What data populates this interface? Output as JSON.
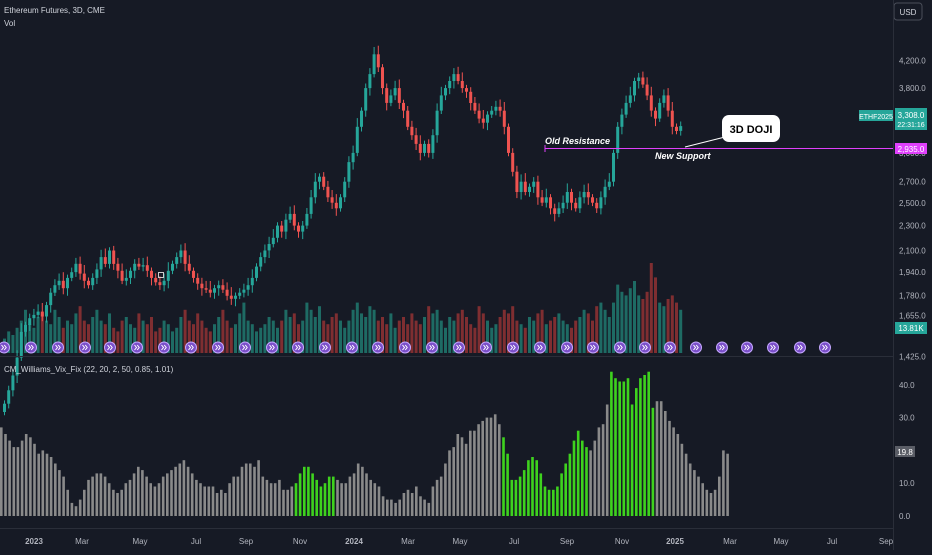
{
  "header": {
    "symbol_line": "Ethereum Futures, 3D, CME",
    "volume_label": "Vol"
  },
  "currency_button": "USD",
  "price_axis": {
    "ticks": [
      4200,
      3800,
      3400,
      3000,
      2700,
      2500,
      2300,
      2100,
      1940,
      1780,
      1655,
      1425
    ],
    "tick_labels": [
      "4,200.0",
      "3,800.0",
      "3,400.0",
      "3,000.0",
      "2,700.0",
      "2,500.0",
      "2,300.0",
      "2,100.0",
      "1,940.0",
      "1,780.0",
      "1,655.0",
      "1,425.0"
    ],
    "ticker_badge": "ETHF2025",
    "last_price": "3,308.0",
    "countdown": "22:31:16",
    "support_price": "2,935.0",
    "volume_badge": "13.81K"
  },
  "annotations": {
    "old_resistance": "Old Resistance",
    "new_support": "New Support",
    "callout": "3D DOJI"
  },
  "indicator": {
    "label": "CM_Williams_Vix_Fix (22, 20, 2, 50, 0.85, 1.01)",
    "ticks": [
      40,
      30,
      20,
      10,
      0
    ],
    "tick_labels": [
      "40.0",
      "30.0",
      "20.0",
      "10.0",
      "0.0"
    ],
    "last_value": "19.8"
  },
  "time_axis": {
    "labels": [
      "2023",
      "Mar",
      "May",
      "Jul",
      "Sep",
      "Nov",
      "2024",
      "Mar",
      "May",
      "Jul",
      "Sep",
      "Nov",
      "2025",
      "Mar",
      "May",
      "Jul",
      "Sep"
    ]
  },
  "colors": {
    "background": "#161a25",
    "up": "#26a69a",
    "down": "#ef5350",
    "volume_up": "#1e6b64",
    "volume_down": "#7f2e31",
    "support_line": "#e040fb",
    "vix_normal": "#8a8a8a",
    "vix_alert": "#3ed21e",
    "event_icon": "#7b4fc9"
  },
  "chart_data": [
    {
      "type": "candlestick",
      "title": "Ethereum Futures, 3D, CME",
      "x_start": "2023-01",
      "x_end": "2025-09",
      "ylim": [
        1360,
        4480
      ],
      "y_scale": "log",
      "support_level": 2935,
      "last": 3308,
      "approx_closes": [
        1200,
        1260,
        1330,
        1420,
        1560,
        1600,
        1640,
        1660,
        1680,
        1650,
        1720,
        1800,
        1850,
        1880,
        1830,
        1900,
        1940,
        2000,
        1930,
        1880,
        1850,
        1900,
        1960,
        2050,
        2000,
        2100,
        2000,
        1950,
        1880,
        1900,
        1950,
        2000,
        1980,
        1990,
        1950,
        1900,
        1870,
        1850,
        1880,
        1950,
        2000,
        2050,
        2100,
        2000,
        1950,
        1900,
        1860,
        1830,
        1820,
        1800,
        1830,
        1850,
        1820,
        1780,
        1760,
        1780,
        1800,
        1820,
        1850,
        1900,
        1980,
        2050,
        2100,
        2150,
        2200,
        2300,
        2250,
        2350,
        2400,
        2300,
        2250,
        2300,
        2400,
        2550,
        2700,
        2750,
        2650,
        2550,
        2500,
        2450,
        2550,
        2700,
        2900,
        3000,
        3300,
        3500,
        3800,
        4000,
        4300,
        4100,
        3800,
        3600,
        3700,
        3800,
        3600,
        3500,
        3300,
        3200,
        3100,
        3000,
        3100,
        3000,
        3200,
        3500,
        3700,
        3800,
        3900,
        4000,
        3900,
        3800,
        3750,
        3600,
        3500,
        3400,
        3350,
        3450,
        3500,
        3550,
        3500,
        3300,
        3000,
        2800,
        2600,
        2700,
        2600,
        2650,
        2700,
        2550,
        2500,
        2550,
        2450,
        2400,
        2450,
        2500,
        2600,
        2500,
        2450,
        2550,
        2600,
        2550,
        2500,
        2450,
        2550,
        2650,
        2700,
        3000,
        3300,
        3450,
        3600,
        3700,
        3900,
        3950,
        3850,
        3700,
        3500,
        3400,
        3600,
        3700,
        3500,
        3300,
        3250,
        3308
      ],
      "approx_volumes": [
        4,
        6,
        5,
        7,
        9,
        12,
        8,
        7,
        10,
        11,
        9,
        8,
        12,
        10,
        7,
        9,
        8,
        11,
        13,
        9,
        8,
        10,
        12,
        9,
        8,
        11,
        7,
        6,
        9,
        10,
        8,
        7,
        11,
        9,
        8,
        10,
        6,
        7,
        9,
        8,
        6,
        7,
        10,
        12,
        9,
        8,
        11,
        9,
        7,
        6,
        8,
        10,
        12,
        9,
        7,
        8,
        11,
        14,
        9,
        8,
        6,
        7,
        8,
        10,
        9,
        7,
        9,
        12,
        10,
        11,
        8,
        9,
        14,
        12,
        10,
        13,
        9,
        8,
        10,
        11,
        9,
        7,
        9,
        12,
        14,
        11,
        10,
        13,
        12,
        9,
        10,
        8,
        11,
        7,
        9,
        10,
        8,
        11,
        9,
        8,
        10,
        13,
        11,
        12,
        9,
        7,
        10,
        9,
        11,
        12,
        10,
        8,
        7,
        13,
        11,
        9,
        7,
        8,
        10,
        12,
        11,
        13,
        9,
        8,
        7,
        10,
        9,
        11,
        12,
        8,
        9,
        10,
        11,
        9,
        8,
        7,
        9,
        10,
        12,
        11,
        9,
        13,
        14,
        12,
        10,
        14,
        19,
        17,
        16,
        18,
        20,
        16,
        15,
        17,
        25,
        21,
        14,
        13,
        15,
        16,
        14,
        12
      ],
      "volume_unit": "K"
    },
    {
      "type": "bar",
      "title": "CM_Williams_Vix_Fix (22, 20, 2, 50, 0.85, 1.01)",
      "ylim": [
        0,
        45
      ],
      "last": 19.8,
      "approx_values": [
        27,
        25,
        23,
        21,
        21,
        23,
        25,
        24,
        22,
        19,
        20,
        19,
        18,
        16,
        14,
        12,
        8,
        4,
        3,
        5,
        8,
        11,
        12,
        13,
        13,
        12,
        10,
        8,
        7,
        8,
        10,
        11,
        13,
        15,
        14,
        12,
        10,
        9,
        10,
        12,
        13,
        14,
        15,
        16,
        17,
        15,
        13,
        11,
        10,
        9,
        9,
        9,
        7,
        8,
        7,
        10,
        12,
        12,
        15,
        16,
        16,
        15,
        17,
        12,
        11,
        10,
        10,
        11,
        8,
        8,
        9,
        10,
        13,
        15,
        15,
        13,
        11,
        9,
        10,
        12,
        12,
        11,
        10,
        10,
        12,
        13,
        16,
        15,
        13,
        11,
        10,
        9,
        6,
        5,
        5,
        4,
        5,
        7,
        8,
        7,
        9,
        6,
        5,
        4,
        9,
        11,
        12,
        16,
        20,
        21,
        25,
        24,
        22,
        26,
        26,
        28,
        29,
        30,
        30,
        31,
        28,
        24,
        19,
        11,
        11,
        12,
        14,
        17,
        18,
        17,
        13,
        9,
        8,
        8,
        9,
        13,
        16,
        19,
        23,
        26,
        23,
        21,
        20,
        23,
        27,
        28,
        34,
        44,
        42,
        41,
        41,
        42,
        34,
        39,
        42,
        43,
        44,
        33,
        35,
        35,
        32,
        29,
        27,
        25,
        22,
        19,
        16,
        14,
        12,
        10,
        8,
        7,
        8,
        12,
        20,
        19
      ],
      "alert_ranges": [
        [
          71,
          80
        ],
        [
          121,
          141
        ],
        [
          147,
          157
        ]
      ]
    }
  ]
}
